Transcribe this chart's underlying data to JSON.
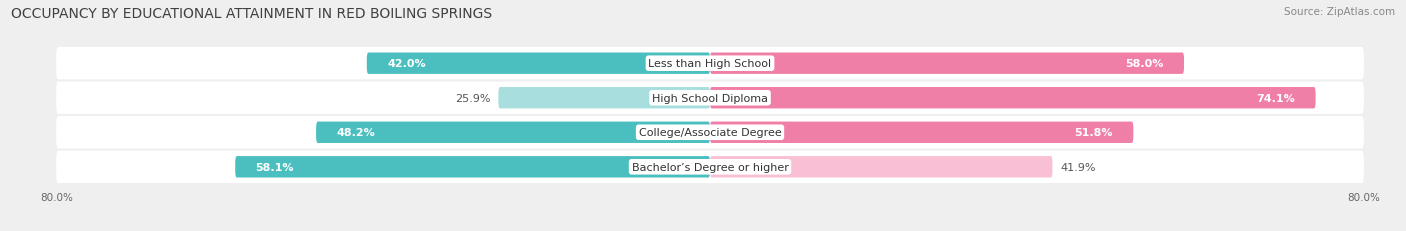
{
  "title": "OCCUPANCY BY EDUCATIONAL ATTAINMENT IN RED BOILING SPRINGS",
  "source": "Source: ZipAtlas.com",
  "categories": [
    "Less than High School",
    "High School Diploma",
    "College/Associate Degree",
    "Bachelor’s Degree or higher"
  ],
  "owner_values": [
    42.0,
    25.9,
    48.2,
    58.1
  ],
  "renter_values": [
    58.0,
    74.1,
    51.8,
    41.9
  ],
  "owner_color": "#4bbfbf",
  "renter_color": "#f07fa8",
  "owner_color_light": "#a8dede",
  "renter_color_light": "#f9c0d5",
  "xlim": 80.0,
  "title_fontsize": 10,
  "source_fontsize": 7.5,
  "bar_height": 0.62,
  "background_color": "#efefef",
  "row_bg_color": "#e8e8e8",
  "label_fontsize": 8,
  "value_fontsize": 8,
  "axis_label_fontsize": 7.5
}
